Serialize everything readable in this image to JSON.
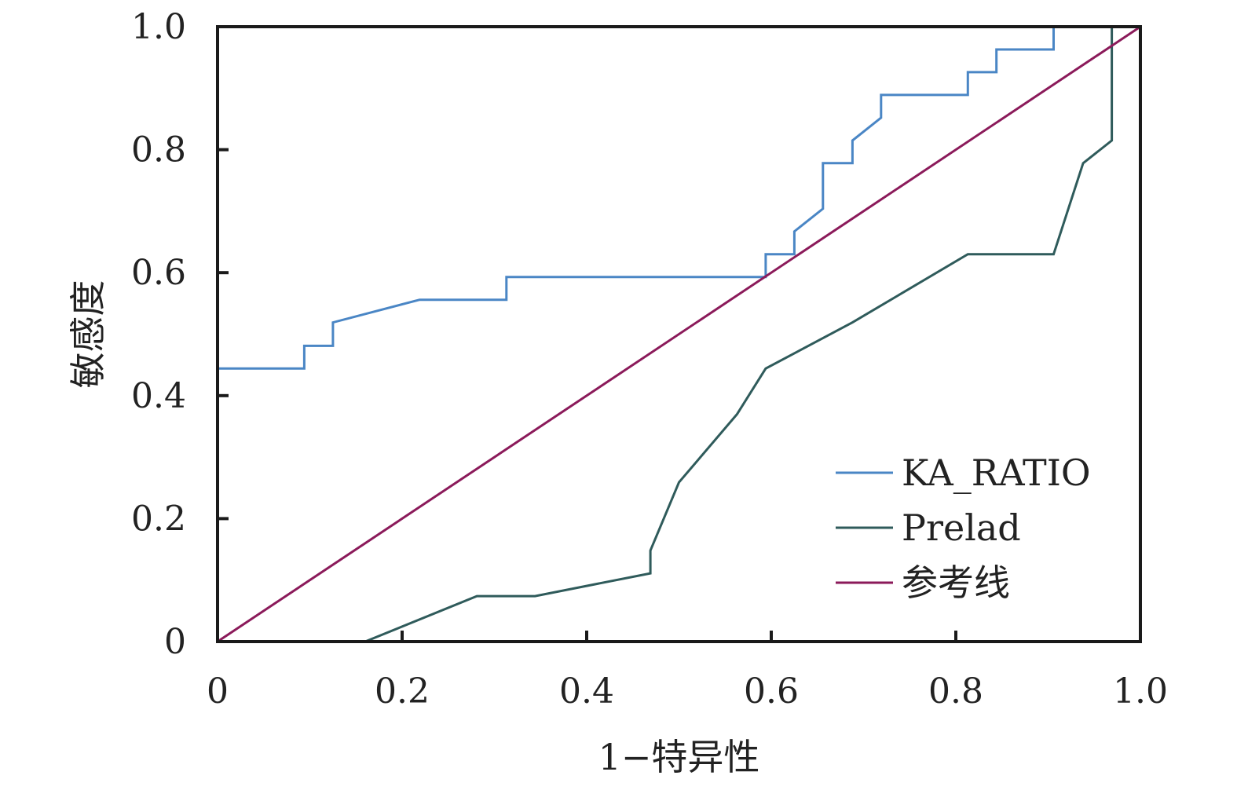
{
  "chart_data": {
    "type": "line",
    "title": "",
    "xlabel": "1−特异性",
    "ylabel": "敏感度",
    "xlim": [
      0,
      1.0
    ],
    "ylim": [
      0,
      1.0
    ],
    "x_ticks": [
      "0",
      "0.2",
      "0.4",
      "0.6",
      "0.8",
      "1.0"
    ],
    "y_ticks": [
      "0",
      "0.2",
      "0.4",
      "0.6",
      "0.8",
      "1.0"
    ],
    "grid": false,
    "legend_position": "bottom-right",
    "series": [
      {
        "name": "KA_RATIO",
        "color": "#4a86c5",
        "points": [
          [
            0,
            0
          ],
          [
            0,
            0.444
          ],
          [
            0.094,
            0.444
          ],
          [
            0.094,
            0.481
          ],
          [
            0.125,
            0.481
          ],
          [
            0.125,
            0.519
          ],
          [
            0.219,
            0.556
          ],
          [
            0.313,
            0.556
          ],
          [
            0.313,
            0.593
          ],
          [
            0.594,
            0.593
          ],
          [
            0.594,
            0.63
          ],
          [
            0.625,
            0.63
          ],
          [
            0.625,
            0.667
          ],
          [
            0.656,
            0.704
          ],
          [
            0.656,
            0.778
          ],
          [
            0.688,
            0.778
          ],
          [
            0.688,
            0.815
          ],
          [
            0.719,
            0.852
          ],
          [
            0.719,
            0.889
          ],
          [
            0.813,
            0.889
          ],
          [
            0.813,
            0.926
          ],
          [
            0.844,
            0.926
          ],
          [
            0.844,
            0.963
          ],
          [
            0.906,
            0.963
          ],
          [
            0.906,
            1.0
          ],
          [
            1.0,
            1.0
          ]
        ]
      },
      {
        "name": "Prelad",
        "color": "#2f5b5b",
        "points": [
          [
            0,
            0
          ],
          [
            0.16,
            0
          ],
          [
            0.281,
            0.074
          ],
          [
            0.344,
            0.074
          ],
          [
            0.469,
            0.111
          ],
          [
            0.469,
            0.148
          ],
          [
            0.5,
            0.259
          ],
          [
            0.563,
            0.37
          ],
          [
            0.594,
            0.444
          ],
          [
            0.688,
            0.519
          ],
          [
            0.813,
            0.63
          ],
          [
            0.906,
            0.63
          ],
          [
            0.938,
            0.778
          ],
          [
            0.969,
            0.815
          ],
          [
            0.969,
            1.0
          ],
          [
            1.0,
            1.0
          ]
        ]
      },
      {
        "name": "参考线",
        "color": "#8b1a5a",
        "points": [
          [
            0,
            0
          ],
          [
            1.0,
            1.0
          ]
        ]
      }
    ]
  }
}
